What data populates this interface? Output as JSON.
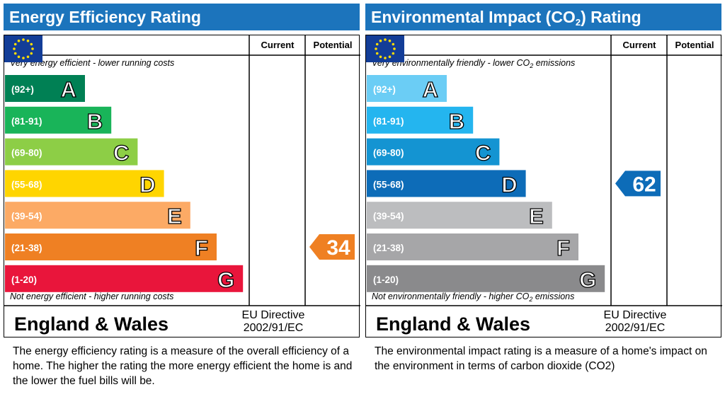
{
  "energy": {
    "title": "Energy Efficiency Rating",
    "col_current": "Current",
    "col_potential": "Potential",
    "top_note": "Very energy efficient - lower running costs",
    "bottom_note": "Not energy efficient - higher running costs",
    "region": "England & Wales",
    "directive_line1": "EU Directive",
    "directive_line2": "2002/91/EC",
    "description": "The energy efficiency rating is a measure of the overall efficiency of a home.  The higher the rating the more energy efficient the home is and the lower the fuel bills will be."
  },
  "environment": {
    "title_prefix": "Environmental Impact (CO",
    "title_sub": "2",
    "title_suffix": ") Rating",
    "col_current": "Current",
    "col_potential": "Potential",
    "top_note_prefix": "Very environmentally friendly - lower CO",
    "top_note_sub": "2",
    "top_note_suffix": " emissions",
    "bottom_note_prefix": "Not environmentally friendly - higher CO",
    "bottom_note_sub": "2",
    "bottom_note_suffix": " emissions",
    "region": "England & Wales",
    "directive_line1": "EU Directive",
    "directive_line2": "2002/91/EC",
    "description": "The environmental impact rating is a measure of a home's impact on the environment in terms of carbon dioxide (CO2)"
  },
  "chart_data": [
    {
      "type": "bar",
      "title": "Energy Efficiency Rating",
      "categories": [
        "A",
        "B",
        "C",
        "D",
        "E",
        "F",
        "G"
      ],
      "ranges": [
        "(92+)",
        "(81-91)",
        "(69-80)",
        "(55-68)",
        "(39-54)",
        "(21-38)",
        "(1-20)"
      ],
      "colors": [
        "#008054",
        "#19b459",
        "#8dce46",
        "#ffd500",
        "#fcaa65",
        "#ef8023",
        "#e9153b"
      ],
      "current": {
        "value": null,
        "band": null
      },
      "potential": {
        "value": 34,
        "band": "F",
        "color": "#ef8023"
      }
    },
    {
      "type": "bar",
      "title": "Environmental Impact (CO2) Rating",
      "categories": [
        "A",
        "B",
        "C",
        "D",
        "E",
        "F",
        "G"
      ],
      "ranges": [
        "(92+)",
        "(81-91)",
        "(69-80)",
        "(55-68)",
        "(39-54)",
        "(21-38)",
        "(1-20)"
      ],
      "colors": [
        "#6bcdf5",
        "#24b5ef",
        "#1494d2",
        "#0d6cb8",
        "#bcbdbf",
        "#a6a6a8",
        "#8a8a8c"
      ],
      "current": {
        "value": 62,
        "band": "D",
        "color": "#0d6cb8"
      },
      "potential": {
        "value": null,
        "band": null
      }
    }
  ]
}
